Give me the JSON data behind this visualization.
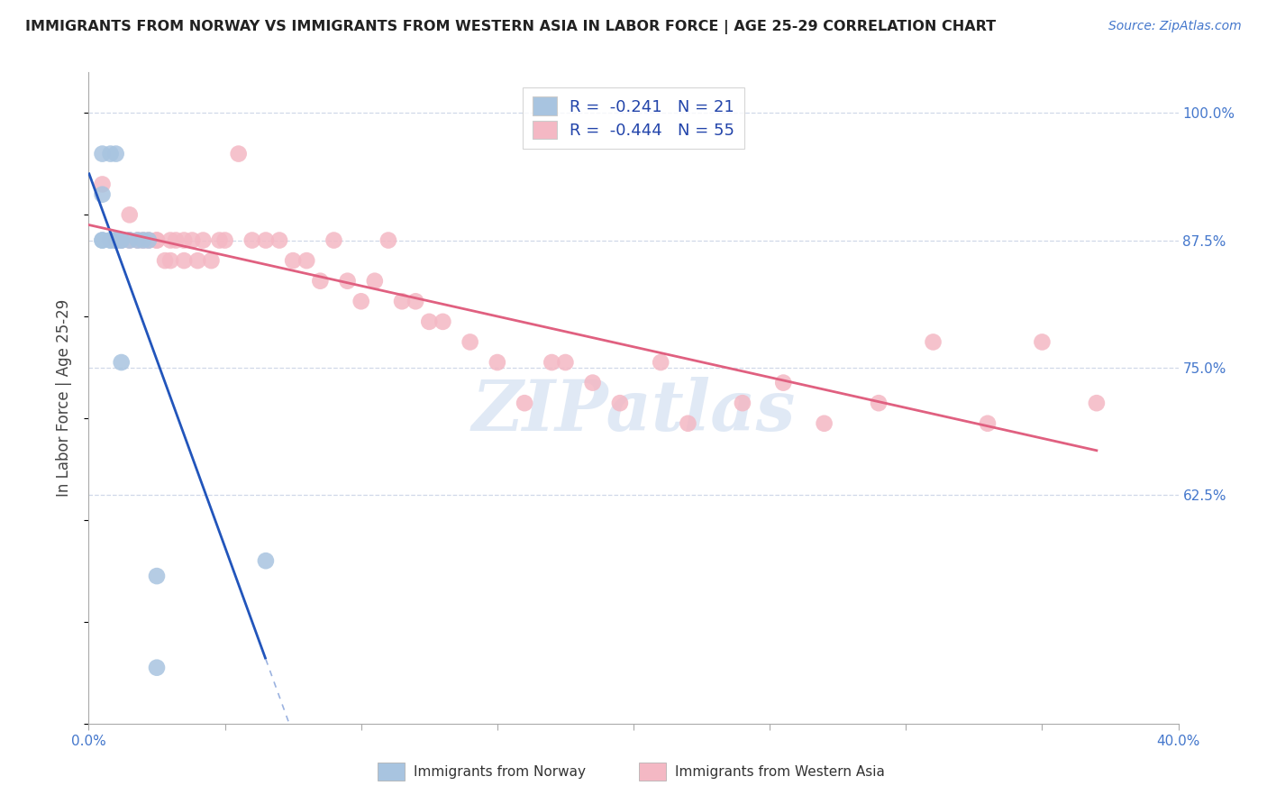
{
  "title": "IMMIGRANTS FROM NORWAY VS IMMIGRANTS FROM WESTERN ASIA IN LABOR FORCE | AGE 25-29 CORRELATION CHART",
  "source": "Source: ZipAtlas.com",
  "ylabel": "In Labor Force | Age 25-29",
  "xlim": [
    0.0,
    0.4
  ],
  "ylim": [
    0.4,
    1.04
  ],
  "xticks": [
    0.0,
    0.05,
    0.1,
    0.15,
    0.2,
    0.25,
    0.3,
    0.35,
    0.4
  ],
  "xticklabels": [
    "0.0%",
    "",
    "",
    "",
    "",
    "",
    "",
    "",
    "40.0%"
  ],
  "ytick_positions": [
    0.625,
    0.75,
    0.875,
    1.0
  ],
  "ytick_labels_right": [
    "62.5%",
    "75.0%",
    "87.5%",
    "100.0%"
  ],
  "norway_R": -0.241,
  "norway_N": 21,
  "western_asia_R": -0.444,
  "western_asia_N": 55,
  "norway_color": "#a8c4e0",
  "western_asia_color": "#f4b8c4",
  "norway_line_color": "#2255bb",
  "western_asia_line_color": "#e06080",
  "norway_scatter_x": [
    0.005,
    0.005,
    0.008,
    0.008,
    0.01,
    0.01,
    0.01,
    0.012,
    0.012,
    0.015,
    0.018,
    0.02,
    0.022,
    0.005,
    0.005,
    0.008,
    0.01,
    0.012,
    0.025,
    0.025,
    0.065
  ],
  "norway_scatter_y": [
    0.875,
    0.875,
    0.875,
    0.875,
    0.875,
    0.875,
    0.875,
    0.875,
    0.875,
    0.875,
    0.875,
    0.875,
    0.875,
    0.96,
    0.92,
    0.96,
    0.96,
    0.755,
    0.545,
    0.455,
    0.56
  ],
  "western_asia_scatter_x": [
    0.005,
    0.01,
    0.012,
    0.015,
    0.015,
    0.018,
    0.02,
    0.022,
    0.025,
    0.025,
    0.028,
    0.03,
    0.03,
    0.032,
    0.035,
    0.035,
    0.038,
    0.04,
    0.042,
    0.045,
    0.048,
    0.05,
    0.055,
    0.06,
    0.065,
    0.07,
    0.075,
    0.08,
    0.085,
    0.09,
    0.095,
    0.1,
    0.105,
    0.11,
    0.115,
    0.12,
    0.125,
    0.13,
    0.14,
    0.15,
    0.16,
    0.17,
    0.175,
    0.185,
    0.195,
    0.21,
    0.22,
    0.24,
    0.255,
    0.27,
    0.29,
    0.31,
    0.33,
    0.35,
    0.37
  ],
  "western_asia_scatter_y": [
    0.93,
    0.875,
    0.875,
    0.875,
    0.9,
    0.875,
    0.875,
    0.875,
    0.875,
    0.875,
    0.855,
    0.875,
    0.855,
    0.875,
    0.855,
    0.875,
    0.875,
    0.855,
    0.875,
    0.855,
    0.875,
    0.875,
    0.96,
    0.875,
    0.875,
    0.875,
    0.855,
    0.855,
    0.835,
    0.875,
    0.835,
    0.815,
    0.835,
    0.875,
    0.815,
    0.815,
    0.795,
    0.795,
    0.775,
    0.755,
    0.715,
    0.755,
    0.755,
    0.735,
    0.715,
    0.755,
    0.695,
    0.715,
    0.735,
    0.695,
    0.715,
    0.775,
    0.695,
    0.775,
    0.715
  ],
  "watermark": "ZIPatlas",
  "background_color": "#ffffff",
  "grid_color": "#d0d8e8"
}
